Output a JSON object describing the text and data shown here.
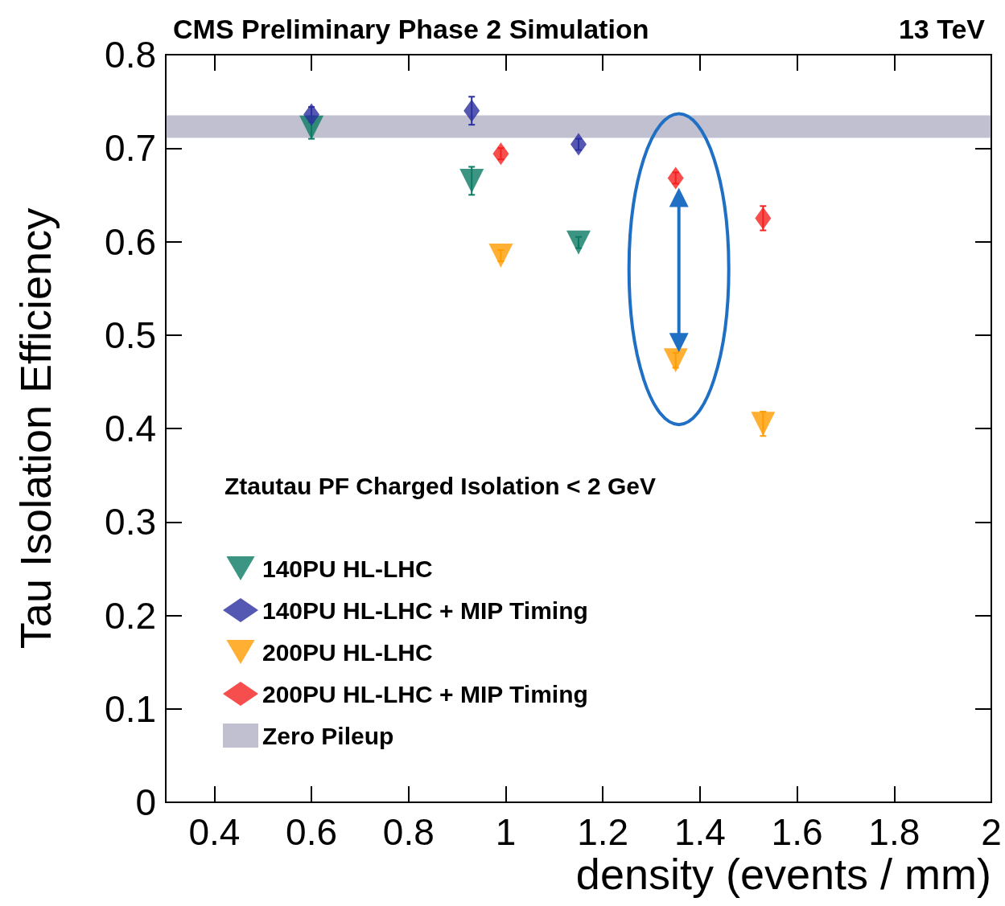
{
  "chart_data": {
    "type": "scatter",
    "title": "CMS Preliminary Phase 2 Simulation",
    "subtitle": "13 TeV",
    "xlabel": "density (events / mm)",
    "ylabel": "Tau Isolation Efficiency",
    "legend_title": "Ztautau PF Charged Isolation < 2 GeV",
    "xlim": [
      0.3,
      2
    ],
    "xticks": [
      0.4,
      0.6,
      0.8,
      1,
      1.2,
      1.4,
      1.6,
      1.8,
      2
    ],
    "ylim": [
      0,
      0.8
    ],
    "yticks": [
      0,
      0.1,
      0.2,
      0.3,
      0.4,
      0.5,
      0.6,
      0.7,
      0.8
    ],
    "grid": false,
    "legend": "bottom left",
    "series": [
      {
        "name": "140PU HL-LHC",
        "color": "#0b7a63",
        "marker": "triangle",
        "x": [
          0.6,
          0.93,
          1.15
        ],
        "values": [
          0.722,
          0.665,
          0.599
        ],
        "errors": [
          0.012,
          0.015,
          0.006
        ]
      },
      {
        "name": "140PU HL-LHC + MIP Timing",
        "color": "#2a2ea0",
        "marker": "diamond",
        "x": [
          0.6,
          0.93,
          1.15
        ],
        "values": [
          0.736,
          0.74,
          0.704
        ],
        "errors": [
          0.008,
          0.015,
          0.006
        ]
      },
      {
        "name": "200PU HL-LHC",
        "color": "#ff9c00",
        "marker": "triangle",
        "x": [
          0.99,
          1.35,
          1.53
        ],
        "values": [
          0.585,
          0.473,
          0.405
        ],
        "errors": [
          0.006,
          0.008,
          0.013
        ]
      },
      {
        "name": "200PU HL-LHC + MIP Timing",
        "color": "#f42020",
        "marker": "diamond",
        "x": [
          0.99,
          1.35,
          1.53
        ],
        "values": [
          0.694,
          0.668,
          0.625
        ],
        "errors": [
          0.006,
          0.006,
          0.013
        ]
      }
    ],
    "bands": [
      {
        "axis": "y",
        "from": 0.711,
        "to": 0.735,
        "label": "Zero Pileup",
        "color": "#4a4a78"
      }
    ]
  }
}
